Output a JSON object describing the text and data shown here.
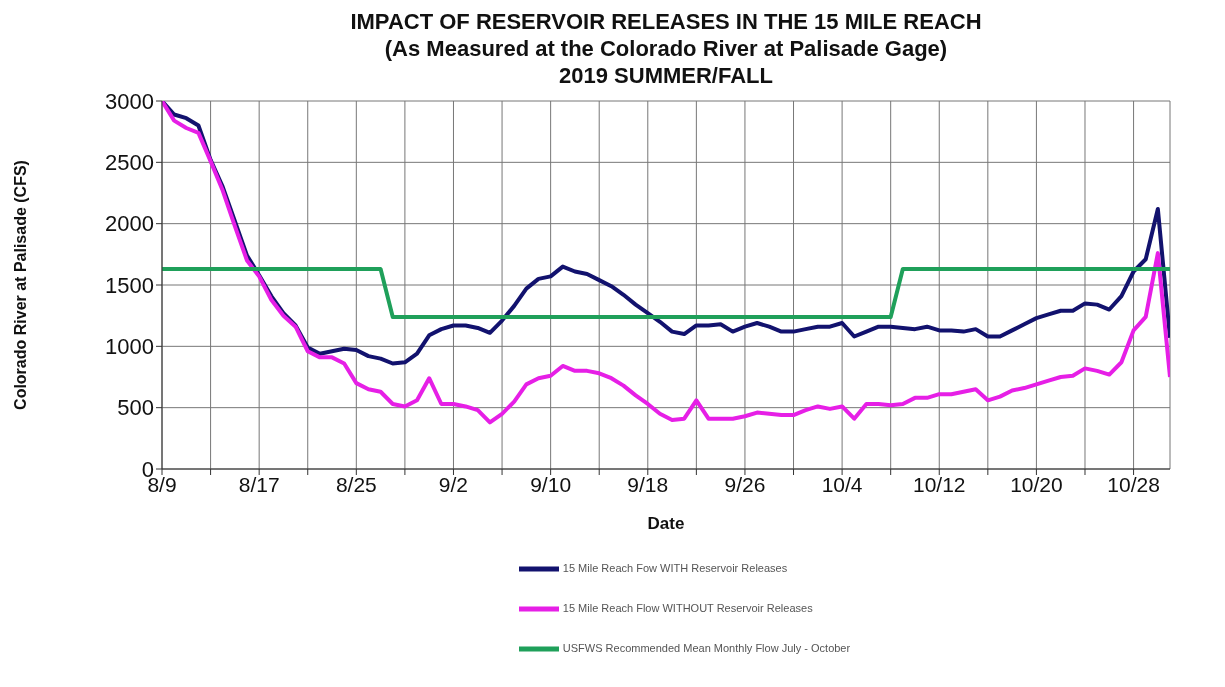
{
  "chart_data": {
    "type": "line",
    "title": "IMPACT OF RESERVOIR RELEASES IN THE 15 MILE REACH",
    "subtitle": "(As Measured at the Colorado River at Palisade Gage)\n2019 SUMMER/FALL",
    "xlabel": "Date",
    "ylabel": "Colorado River at Palisade (CFS)",
    "x": [
      "--08-09",
      "--08-10",
      "--08-11",
      "--08-12",
      "--08-13",
      "--08-14",
      "--08-15",
      "--08-16",
      "--08-17",
      "--08-18",
      "--08-19",
      "--08-20",
      "--08-21",
      "--08-22",
      "--08-23",
      "--08-24",
      "--08-25",
      "--08-26",
      "--08-27",
      "--08-28",
      "--08-29",
      "--08-30",
      "--08-31",
      "--09-01",
      "--09-02",
      "--09-03",
      "--09-04",
      "--09-05",
      "--09-06",
      "--09-07",
      "--09-08",
      "--09-09",
      "--09-10",
      "--09-11",
      "--09-12",
      "--09-13",
      "--09-14",
      "--09-15",
      "--09-16",
      "--09-17",
      "--09-18",
      "--09-19",
      "--09-20",
      "--09-21",
      "--09-22",
      "--09-23",
      "--09-24",
      "--09-25",
      "--09-26",
      "--09-27",
      "--09-28",
      "--09-29",
      "--09-30",
      "--10-01",
      "--10-02",
      "--10-03",
      "--10-04",
      "--10-05",
      "--10-06",
      "--10-07",
      "--10-08",
      "--10-09",
      "--10-10",
      "--10-11",
      "--10-12",
      "--10-13",
      "--10-14",
      "--10-15",
      "--10-16",
      "--10-17",
      "--10-18",
      "--10-19",
      "--10-20",
      "--10-21",
      "--10-22",
      "--10-23",
      "--10-24",
      "--10-25",
      "--10-26",
      "--10-27",
      "--10-28",
      "--10-29",
      "--10-30",
      "--10-31"
    ],
    "series": [
      {
        "name": "15 Mile Reach Fow WITH Reservoir Releases",
        "color": "#12126e",
        "values": [
          3000,
          2890,
          2860,
          2800,
          2520,
          2300,
          2020,
          1740,
          1580,
          1410,
          1270,
          1170,
          990,
          940,
          960,
          980,
          970,
          920,
          900,
          860,
          870,
          940,
          1090,
          1140,
          1170,
          1170,
          1150,
          1110,
          1210,
          1330,
          1470,
          1550,
          1570,
          1650,
          1610,
          1590,
          1540,
          1490,
          1420,
          1340,
          1270,
          1200,
          1120,
          1100,
          1170,
          1170,
          1180,
          1120,
          1160,
          1190,
          1160,
          1120,
          1120,
          1140,
          1160,
          1160,
          1190,
          1080,
          1120,
          1160,
          1160,
          1150,
          1140,
          1160,
          1130,
          1130,
          1120,
          1140,
          1080,
          1080,
          1130,
          1180,
          1230,
          1260,
          1290,
          1290,
          1350,
          1340,
          1300,
          1410,
          1610,
          1710,
          2120,
          1070
        ]
      },
      {
        "name": "15 Mile Reach Flow WITHOUT Reservoir Releases",
        "color": "#e61fe6",
        "values": [
          3000,
          2840,
          2780,
          2740,
          2510,
          2270,
          1980,
          1700,
          1570,
          1380,
          1250,
          1160,
          960,
          910,
          910,
          860,
          700,
          650,
          630,
          530,
          510,
          560,
          740,
          530,
          530,
          510,
          480,
          380,
          450,
          550,
          690,
          740,
          760,
          840,
          800,
          800,
          780,
          740,
          680,
          600,
          530,
          450,
          400,
          410,
          560,
          410,
          410,
          410,
          430,
          460,
          450,
          440,
          440,
          480,
          510,
          490,
          510,
          410,
          530,
          530,
          520,
          530,
          580,
          580,
          610,
          610,
          630,
          650,
          560,
          590,
          640,
          660,
          690,
          720,
          750,
          760,
          820,
          800,
          770,
          870,
          1130,
          1240,
          1760,
          750
        ]
      },
      {
        "name": "USFWS Recommended Mean Monthly Flow July - October",
        "color": "#1fa05a",
        "x": [
          "--08-09",
          "--08-27",
          "--08-28",
          "--10-08",
          "--10-09",
          "--10-31"
        ],
        "values": [
          1630,
          1630,
          1240,
          1240,
          1630,
          1630
        ]
      }
    ],
    "xlim": [
      "--08-09",
      "--10-31"
    ],
    "xticks": [
      {
        "value": "--08-09",
        "label": "8/9"
      },
      {
        "value": "--08-13",
        "label": null
      },
      {
        "value": "--08-17",
        "label": "8/17"
      },
      {
        "value": "--08-21",
        "label": null
      },
      {
        "value": "--08-25",
        "label": "8/25"
      },
      {
        "value": "--08-29",
        "label": null
      },
      {
        "value": "--09-02",
        "label": "9/2"
      },
      {
        "value": "--09-06",
        "label": null
      },
      {
        "value": "--09-10",
        "label": "9/10"
      },
      {
        "value": "--09-14",
        "label": null
      },
      {
        "value": "--09-18",
        "label": "9/18"
      },
      {
        "value": "--09-22",
        "label": null
      },
      {
        "value": "--09-26",
        "label": "9/26"
      },
      {
        "value": "--09-30",
        "label": null
      },
      {
        "value": "--10-04",
        "label": "10/4"
      },
      {
        "value": "--10-08",
        "label": null
      },
      {
        "value": "--10-12",
        "label": "10/12"
      },
      {
        "value": "--10-16",
        "label": null
      },
      {
        "value": "--10-20",
        "label": "10/20"
      },
      {
        "value": "--10-24",
        "label": null
      },
      {
        "value": "--10-28",
        "label": "10/28"
      }
    ],
    "ylim": [
      0,
      3000
    ],
    "yticks": [
      0,
      500,
      1000,
      1500,
      2000,
      2500,
      3000
    ],
    "grid": true,
    "legend": "bottom",
    "marker": "none",
    "line_style": "solid"
  }
}
